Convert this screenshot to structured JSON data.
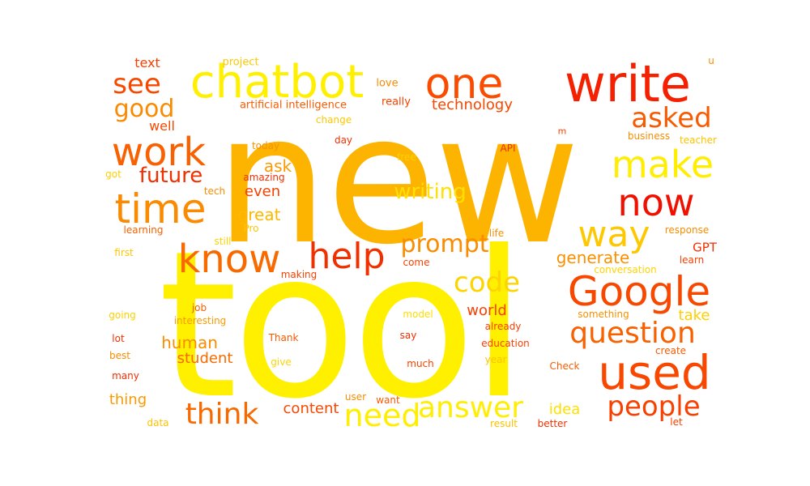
{
  "palette": {
    "yellow": "#ffee00",
    "gold": "#fdc200",
    "amber": "#fcaa00",
    "orange": "#fa8400",
    "deep_orange": "#f85a00",
    "red_orange": "#f53a00",
    "red": "#f01000"
  },
  "words": {
    "new": {
      "text": "new",
      "color": "#fcb400",
      "weight": 1.0
    },
    "tool": {
      "text": "tool",
      "color": "#fff000",
      "weight": 1.0
    },
    "chatbot": {
      "text": "chatbot",
      "color": "#fff000",
      "weight": 0.26
    },
    "write": {
      "text": "write",
      "color": "#f42000",
      "weight": 0.28
    },
    "one": {
      "text": "one",
      "color": "#f94c00",
      "weight": 0.24
    },
    "work": {
      "text": "work",
      "color": "#f86000",
      "weight": 0.22
    },
    "time": {
      "text": "time",
      "color": "#fa8a00",
      "weight": 0.23
    },
    "know": {
      "text": "know",
      "color": "#f86a00",
      "weight": 0.22
    },
    "now": {
      "text": "now",
      "color": "#f01000",
      "weight": 0.21
    },
    "make": {
      "text": "make",
      "color": "#ffee00",
      "weight": 0.21
    },
    "way": {
      "text": "way",
      "color": "#fdc800",
      "weight": 0.2
    },
    "Google": {
      "text": "Google",
      "color": "#f84800",
      "weight": 0.23
    },
    "used": {
      "text": "used",
      "color": "#f84800",
      "weight": 0.26
    },
    "help": {
      "text": "help",
      "color": "#f03000",
      "weight": 0.2
    },
    "prompt": {
      "text": "prompt",
      "color": "#fa8c00",
      "weight": 0.14
    },
    "code": {
      "text": "code",
      "color": "#fdd400",
      "weight": 0.15
    },
    "question": {
      "text": "question",
      "color": "#f86000",
      "weight": 0.16
    },
    "people": {
      "text": "people",
      "color": "#f84000",
      "weight": 0.15
    },
    "answer": {
      "text": "answer",
      "color": "#ffee00",
      "weight": 0.16
    },
    "need": {
      "text": "need",
      "color": "#ffee00",
      "weight": 0.17
    },
    "think": {
      "text": "think",
      "color": "#f86a00",
      "weight": 0.16
    },
    "see": {
      "text": "see",
      "color": "#f84800",
      "weight": 0.15
    },
    "good": {
      "text": "good",
      "color": "#fa8a00",
      "weight": 0.14
    },
    "asked": {
      "text": "asked",
      "color": "#f85a00",
      "weight": 0.15
    },
    "future": {
      "text": "future",
      "color": "#f03000",
      "weight": 0.12
    },
    "writing": {
      "text": "writing",
      "color": "#ffe000",
      "weight": 0.12
    },
    "technology": {
      "text": "technology",
      "color": "#f84800",
      "weight": 0.08
    },
    "ask": {
      "text": "ask",
      "color": "#fa9a00",
      "weight": 0.09
    },
    "even": {
      "text": "even",
      "color": "#f84000",
      "weight": 0.08
    },
    "great": {
      "text": "great",
      "color": "#fdb800",
      "weight": 0.09
    },
    "generate": {
      "text": "generate",
      "color": "#fa9000",
      "weight": 0.09
    },
    "GPT": {
      "text": "GPT",
      "color": "#f03000",
      "weight": 0.07
    },
    "world": {
      "text": "world",
      "color": "#f84000",
      "weight": 0.08
    },
    "human": {
      "text": "human",
      "color": "#fa8c00",
      "weight": 0.09
    },
    "student": {
      "text": "student",
      "color": "#f86a00",
      "weight": 0.08
    },
    "content": {
      "text": "content",
      "color": "#f84800",
      "weight": 0.08
    },
    "idea": {
      "text": "idea",
      "color": "#ffe000",
      "weight": 0.08
    },
    "thing": {
      "text": "thing",
      "color": "#fa9a00",
      "weight": 0.08
    },
    "take": {
      "text": "take",
      "color": "#fdd000",
      "weight": 0.08
    },
    "well": {
      "text": "well",
      "color": "#f84800",
      "weight": 0.07
    },
    "text": {
      "text": "text",
      "color": "#f84000",
      "weight": 0.07
    },
    "project": {
      "text": "project",
      "color": "#fdc800",
      "weight": 0.06
    },
    "u": {
      "text": "u",
      "color": "#fa8c00",
      "weight": 0.05
    },
    "love": {
      "text": "love",
      "color": "#fa8c00",
      "weight": 0.06
    },
    "artificial_intelligence": {
      "text": "artificial intelligence",
      "color": "#f85a00",
      "weight": 0.06
    },
    "really": {
      "text": "really",
      "color": "#f84000",
      "weight": 0.06
    },
    "change": {
      "text": "change",
      "color": "#fdc800",
      "weight": 0.05
    },
    "m": {
      "text": "m",
      "color": "#f84000",
      "weight": 0.05
    },
    "business": {
      "text": "business",
      "color": "#fa8c00",
      "weight": 0.05
    },
    "teacher": {
      "text": "teacher",
      "color": "#fdc200",
      "weight": 0.05
    },
    "day": {
      "text": "day",
      "color": "#f03000",
      "weight": 0.05
    },
    "today": {
      "text": "today",
      "color": "#fa9000",
      "weight": 0.05
    },
    "API": {
      "text": "API",
      "color": "#f03000",
      "weight": 0.05
    },
    "free": {
      "text": "free",
      "color": "#fdd000",
      "weight": 0.05
    },
    "got": {
      "text": "got",
      "color": "#fdd000",
      "weight": 0.05
    },
    "amazing": {
      "text": "amazing",
      "color": "#f03000",
      "weight": 0.05
    },
    "tech": {
      "text": "tech",
      "color": "#fa8c00",
      "weight": 0.05
    },
    "learning": {
      "text": "learning",
      "color": "#f86000",
      "weight": 0.05
    },
    "Pro": {
      "text": "Pro",
      "color": "#fdc800",
      "weight": 0.05
    },
    "still": {
      "text": "still",
      "color": "#fdd400",
      "weight": 0.05
    },
    "life": {
      "text": "life",
      "color": "#fa8c00",
      "weight": 0.05
    },
    "response": {
      "text": "response",
      "color": "#fa8c00",
      "weight": 0.05
    },
    "first": {
      "text": "first",
      "color": "#fdc800",
      "weight": 0.05
    },
    "come": {
      "text": "come",
      "color": "#f84000",
      "weight": 0.05
    },
    "learn": {
      "text": "learn",
      "color": "#f84000",
      "weight": 0.05
    },
    "conversation": {
      "text": "conversation",
      "color": "#fdd400",
      "weight": 0.05
    },
    "making": {
      "text": "making",
      "color": "#f84000",
      "weight": 0.05
    },
    "job": {
      "text": "job",
      "color": "#f86000",
      "weight": 0.05
    },
    "going": {
      "text": "going",
      "color": "#fdd000",
      "weight": 0.05
    },
    "model": {
      "text": "model",
      "color": "#fde000",
      "weight": 0.05
    },
    "something": {
      "text": "something",
      "color": "#fa9000",
      "weight": 0.05
    },
    "interesting": {
      "text": "interesting",
      "color": "#fa9a00",
      "weight": 0.05
    },
    "already": {
      "text": "already",
      "color": "#f84000",
      "weight": 0.05
    },
    "lot": {
      "text": "lot",
      "color": "#f03000",
      "weight": 0.05
    },
    "Thank": {
      "text": "Thank",
      "color": "#f85a00",
      "weight": 0.05
    },
    "say": {
      "text": "say",
      "color": "#f03000",
      "weight": 0.05
    },
    "education": {
      "text": "education",
      "color": "#f84000",
      "weight": 0.05
    },
    "create": {
      "text": "create",
      "color": "#f85a00",
      "weight": 0.05
    },
    "best": {
      "text": "best",
      "color": "#fa8c00",
      "weight": 0.05
    },
    "year": {
      "text": "year",
      "color": "#fdc200",
      "weight": 0.05
    },
    "give": {
      "text": "give",
      "color": "#fdd400",
      "weight": 0.05
    },
    "much": {
      "text": "much",
      "color": "#f84000",
      "weight": 0.05
    },
    "Check": {
      "text": "Check",
      "color": "#f85a00",
      "weight": 0.05
    },
    "many": {
      "text": "many",
      "color": "#f03000",
      "weight": 0.05
    },
    "user": {
      "text": "user",
      "color": "#fa8c00",
      "weight": 0.05
    },
    "want": {
      "text": "want",
      "color": "#f85a00",
      "weight": 0.05
    },
    "data": {
      "text": "data",
      "color": "#fdc200",
      "weight": 0.05
    },
    "result": {
      "text": "result",
      "color": "#fdc200",
      "weight": 0.05
    },
    "better": {
      "text": "better",
      "color": "#f03000",
      "weight": 0.05
    },
    "let": {
      "text": "let",
      "color": "#f84000",
      "weight": 0.05
    }
  }
}
